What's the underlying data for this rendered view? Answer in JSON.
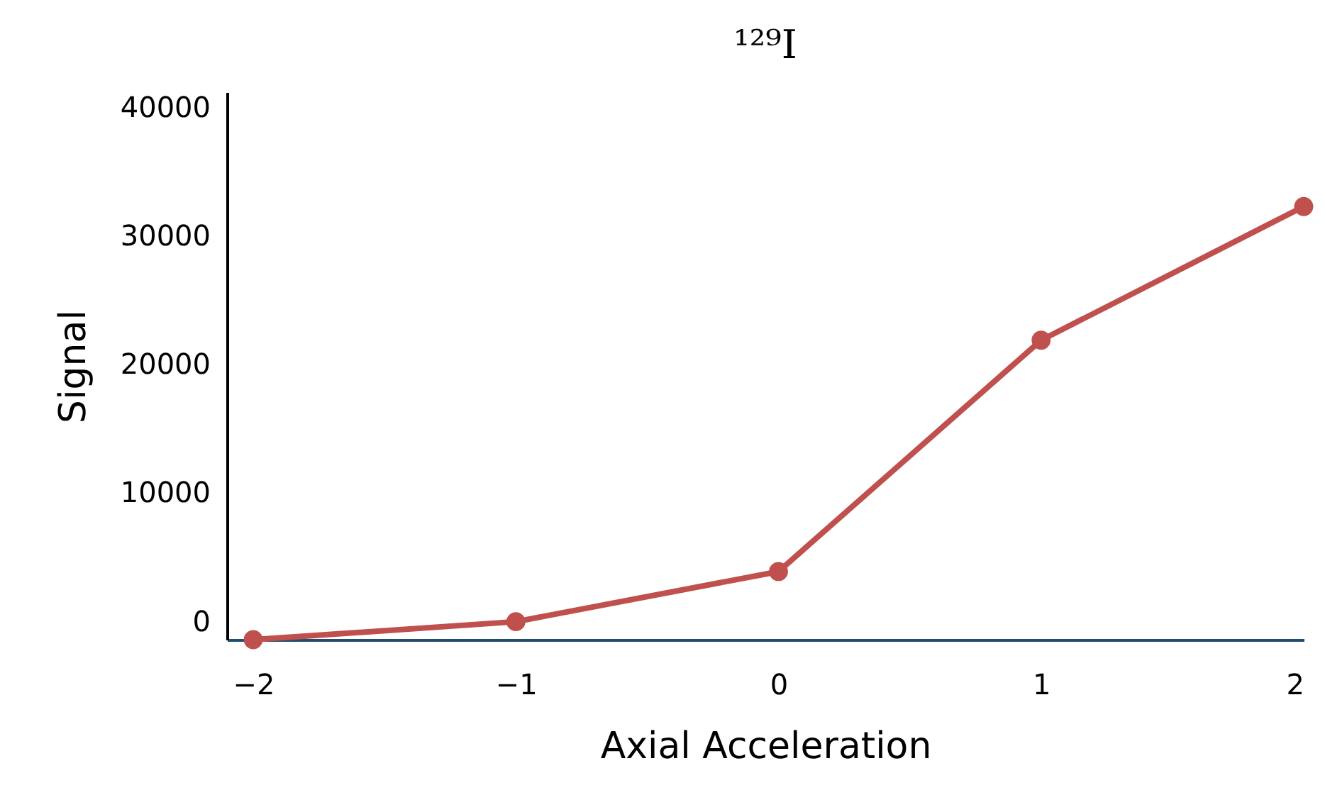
{
  "chart_data": {
    "type": "line",
    "title": "¹²⁹I",
    "xlabel": "Axial Acceleration",
    "ylabel": "Signal",
    "x": [
      -2,
      -1,
      0,
      1,
      2
    ],
    "series": [
      {
        "color": "#c0504d",
        "values": [
          -1400,
          0,
          3900,
          21900,
          32300
        ]
      }
    ],
    "xlim": [
      -2.1,
      2
    ],
    "xticks": [
      -2,
      -1,
      0,
      1,
      2
    ],
    "ylim": [
      -1400,
      41200
    ],
    "yticks": [
      0,
      10000,
      20000,
      30000,
      40000
    ],
    "marker": "circle",
    "line_style": "solid",
    "grid": false,
    "legend": false
  }
}
